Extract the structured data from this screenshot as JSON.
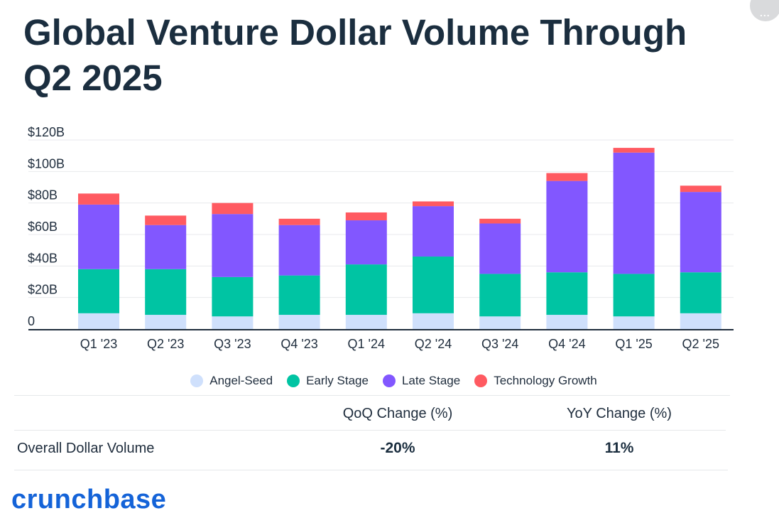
{
  "title": "Global Venture Dollar Volume Through Q2 2025",
  "corner_button": {
    "label": "..."
  },
  "chart_data": {
    "type": "bar",
    "stacked": true,
    "title": "Global Venture Dollar Volume Through Q2 2025",
    "xlabel": "",
    "ylabel": "",
    "ylim": [
      0,
      120
    ],
    "yticks": [
      0,
      20,
      40,
      60,
      80,
      100,
      120
    ],
    "ytick_labels": [
      "0",
      "$20B",
      "$40B",
      "$60B",
      "$80B",
      "$100B",
      "$120B"
    ],
    "categories": [
      "Q1 '23",
      "Q2 '23",
      "Q3 '23",
      "Q4 '23",
      "Q1 '24",
      "Q2 '24",
      "Q3 '24",
      "Q4 '24",
      "Q1 '25",
      "Q2 '25"
    ],
    "series": [
      {
        "name": "Angel-Seed",
        "color": "#cfe0fc",
        "values": [
          10,
          9,
          8,
          9,
          9,
          10,
          8,
          9,
          8,
          10
        ]
      },
      {
        "name": "Early Stage",
        "color": "#00c4a3",
        "values": [
          28,
          29,
          25,
          25,
          32,
          36,
          27,
          27,
          27,
          26
        ]
      },
      {
        "name": "Late Stage",
        "color": "#8257ff",
        "values": [
          41,
          28,
          40,
          32,
          28,
          32,
          32,
          58,
          77,
          51
        ]
      },
      {
        "name": "Technology Growth",
        "color": "#ff5a61",
        "values": [
          7,
          6,
          7,
          4,
          5,
          3,
          3,
          5,
          3,
          4
        ]
      }
    ],
    "grid": true,
    "legend_position": "bottom-center"
  },
  "table": {
    "headers": [
      "QoQ Change (%)",
      "YoY Change (%)"
    ],
    "row_label": "Overall Dollar Volume",
    "values": [
      "-20%",
      "11%"
    ]
  },
  "brand": "crunchbase"
}
